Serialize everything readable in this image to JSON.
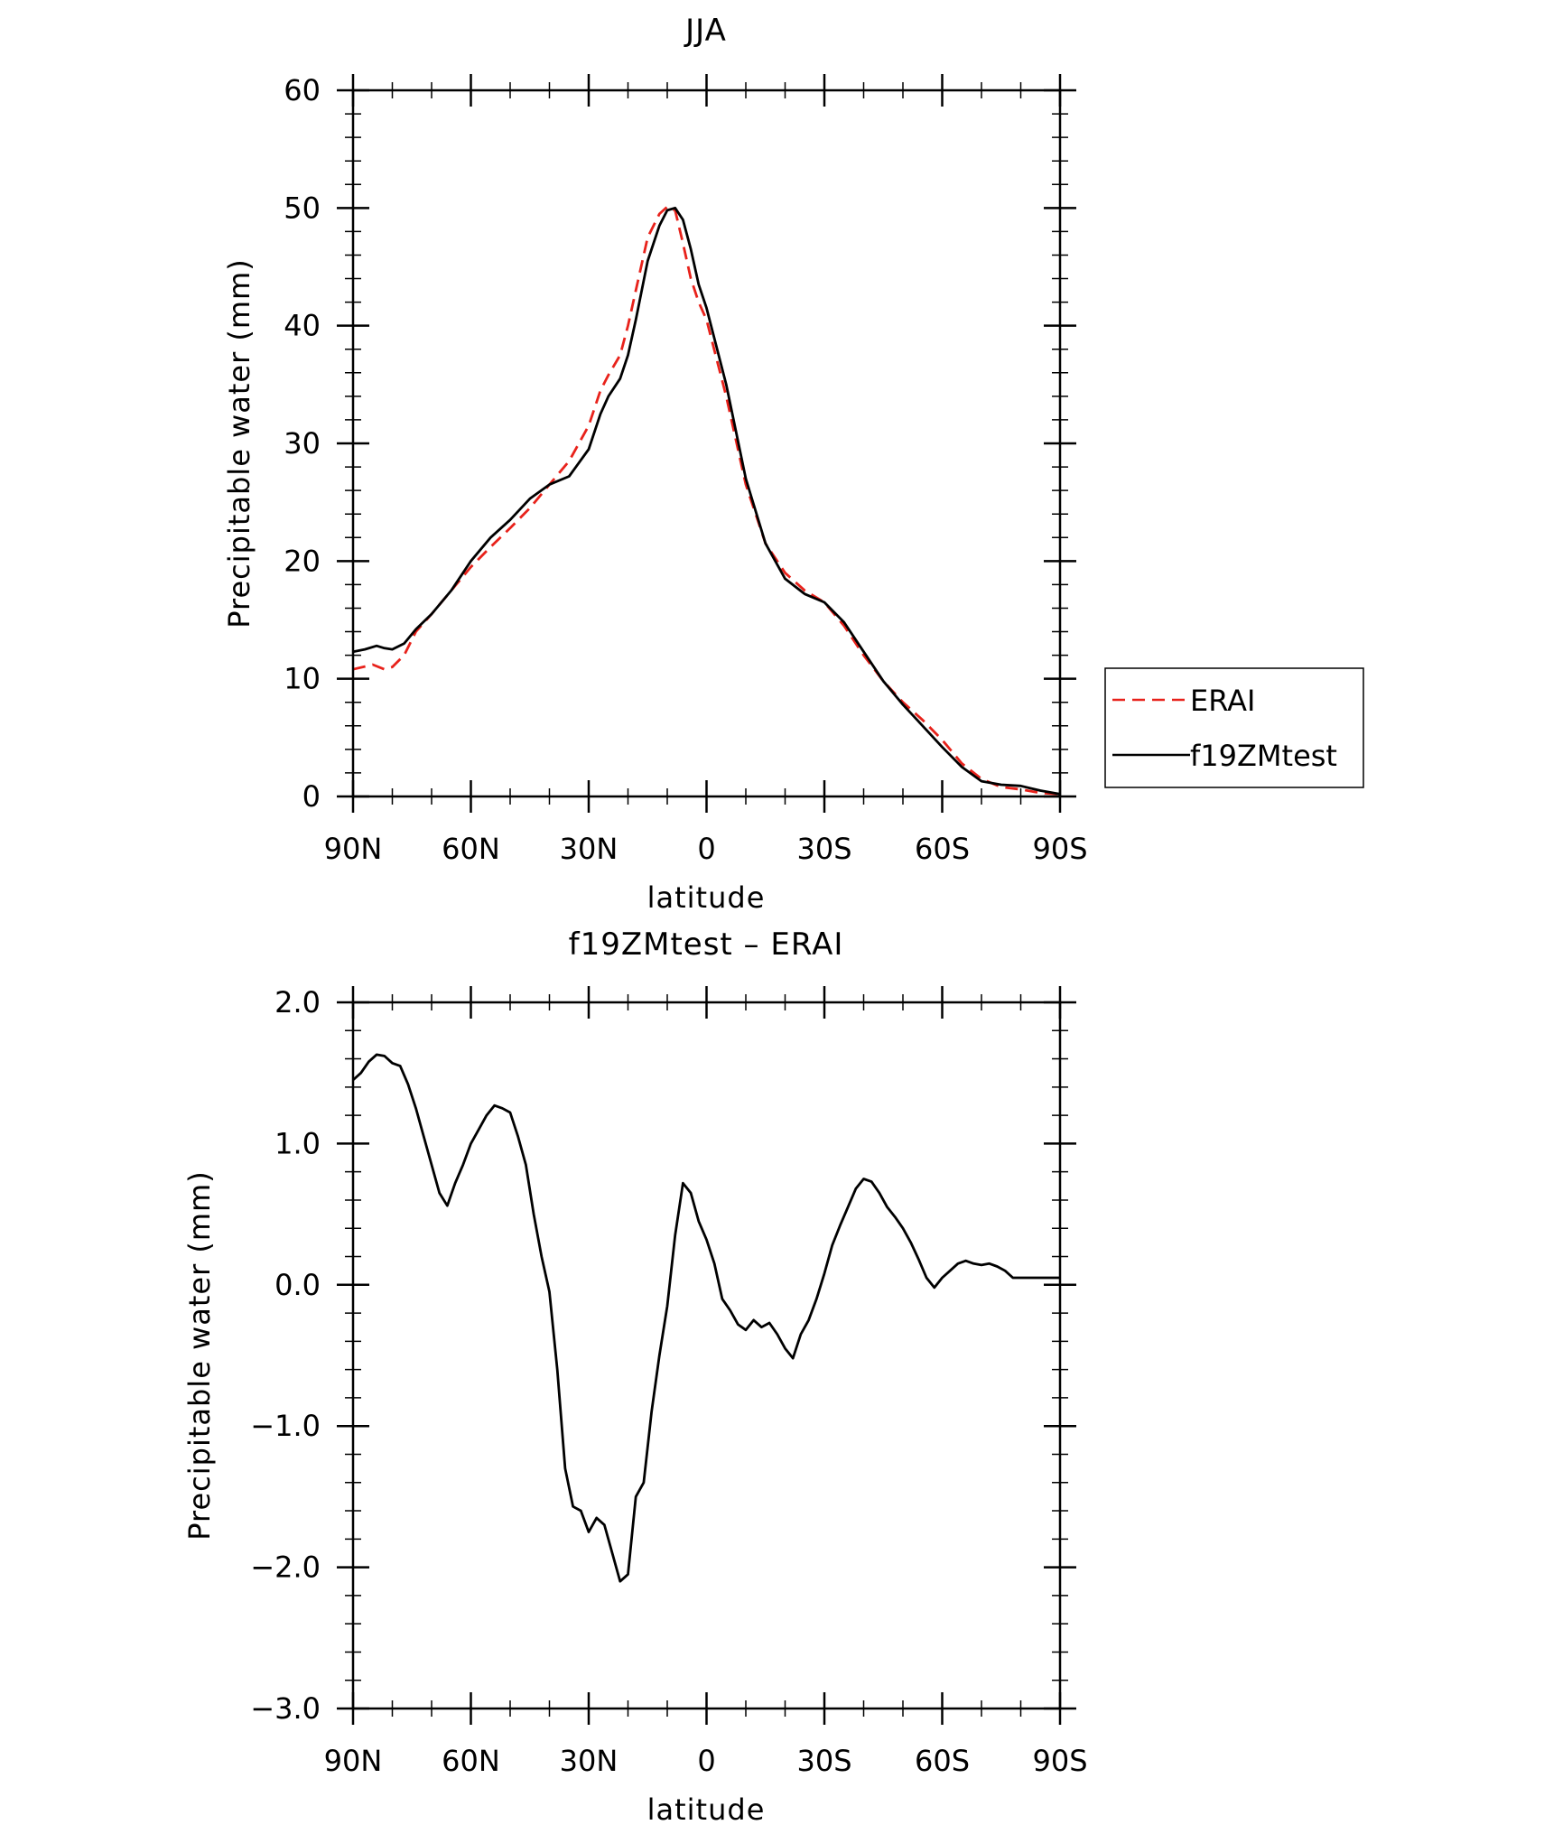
{
  "colors": {
    "erai": "#e8221b",
    "model": "#000000",
    "axes": "#000000",
    "background": "#ffffff"
  },
  "chart_data": [
    {
      "type": "line",
      "title": "JJA",
      "xlabel": "latitude",
      "ylabel": "Precipitable water (mm)",
      "xlim": [
        90,
        -90
      ],
      "ylim": [
        0,
        60
      ],
      "x_ticks": [
        90,
        60,
        30,
        0,
        -30,
        -60,
        -90
      ],
      "x_tick_labels": [
        "90N",
        "60N",
        "30N",
        "0",
        "30S",
        "60S",
        "90S"
      ],
      "y_ticks": [
        0,
        10,
        20,
        30,
        40,
        50,
        60
      ],
      "y_tick_labels": [
        "0",
        "10",
        "20",
        "30",
        "40",
        "50",
        "60"
      ],
      "grid": false,
      "legend": {
        "placement": "right",
        "entries": [
          "ERAI",
          "f19ZMtest"
        ]
      },
      "series": [
        {
          "name": "ERAI",
          "style": "dashed",
          "color": "#e8221b",
          "x": [
            90,
            85,
            82,
            80,
            77,
            74,
            70,
            65,
            60,
            55,
            50,
            45,
            40,
            35,
            30,
            27,
            25,
            22,
            20,
            18,
            15,
            12,
            10,
            8,
            6,
            4,
            2,
            0,
            -5,
            -10,
            -15,
            -20,
            -25,
            -30,
            -35,
            -40,
            -45,
            -50,
            -55,
            -60,
            -65,
            -70,
            -75,
            -80,
            -85,
            -90
          ],
          "y": [
            10.8,
            11.2,
            10.8,
            11.0,
            12.0,
            14.0,
            15.5,
            17.5,
            19.5,
            21.2,
            22.8,
            24.5,
            26.5,
            28.5,
            31.5,
            34.5,
            35.8,
            37.5,
            40.0,
            43.0,
            47.5,
            49.5,
            50.1,
            49.8,
            47.0,
            44.0,
            42.0,
            40.5,
            34.0,
            26.5,
            21.5,
            19.0,
            17.5,
            16.5,
            14.5,
            12.0,
            9.8,
            8.0,
            6.5,
            4.8,
            2.8,
            1.5,
            0.8,
            0.6,
            0.3,
            0.2
          ]
        },
        {
          "name": "f19ZMtest",
          "style": "solid",
          "color": "#000000",
          "x": [
            90,
            87,
            84,
            82,
            80,
            77,
            74,
            70,
            65,
            60,
            55,
            50,
            45,
            40,
            35,
            30,
            27,
            25,
            22,
            20,
            18,
            15,
            12,
            10,
            8,
            6,
            4,
            2,
            0,
            -5,
            -10,
            -15,
            -20,
            -25,
            -30,
            -35,
            -40,
            -45,
            -50,
            -55,
            -60,
            -65,
            -70,
            -75,
            -80,
            -85,
            -90
          ],
          "y": [
            12.3,
            12.5,
            12.8,
            12.6,
            12.5,
            13.0,
            14.2,
            15.5,
            17.5,
            20.0,
            22.0,
            23.5,
            25.3,
            26.5,
            27.2,
            29.5,
            32.5,
            34.0,
            35.5,
            37.5,
            40.5,
            45.5,
            48.5,
            49.8,
            50.0,
            49.0,
            46.5,
            43.5,
            41.5,
            35.0,
            27.0,
            21.5,
            18.5,
            17.2,
            16.5,
            14.8,
            12.3,
            9.8,
            7.8,
            6.0,
            4.2,
            2.5,
            1.3,
            1.0,
            0.9,
            0.5,
            0.2
          ]
        }
      ]
    },
    {
      "type": "line",
      "title": "f19ZMtest – ERAI",
      "xlabel": "latitude",
      "ylabel": "Precipitable water (mm)",
      "xlim": [
        90,
        -90
      ],
      "ylim": [
        -3.0,
        2.0
      ],
      "x_ticks": [
        90,
        60,
        30,
        0,
        -30,
        -60,
        -90
      ],
      "x_tick_labels": [
        "90N",
        "60N",
        "30N",
        "0",
        "30S",
        "60S",
        "90S"
      ],
      "y_ticks": [
        2.0,
        1.0,
        0.0,
        -1.0,
        -2.0,
        -3.0
      ],
      "y_tick_labels": [
        "2.0",
        "1.0",
        "0.0",
        "−1.0",
        "−2.0",
        "−3.0"
      ],
      "grid": false,
      "series": [
        {
          "style": "solid",
          "color": "#000000",
          "x": [
            90,
            88,
            86,
            84,
            82,
            80,
            78,
            76,
            74,
            72,
            70,
            68,
            66,
            64,
            62,
            60,
            58,
            56,
            54,
            52,
            50,
            48,
            46,
            44,
            42,
            40,
            38,
            36,
            34,
            32,
            30,
            28,
            26,
            24,
            22,
            20,
            18,
            16,
            14,
            12,
            10,
            8,
            6,
            4,
            2,
            0,
            -2,
            -4,
            -6,
            -8,
            -10,
            -12,
            -14,
            -16,
            -18,
            -20,
            -22,
            -24,
            -26,
            -28,
            -30,
            -32,
            -34,
            -36,
            -38,
            -40,
            -42,
            -44,
            -46,
            -48,
            -50,
            -52,
            -54,
            -56,
            -58,
            -60,
            -62,
            -64,
            -66,
            -68,
            -70,
            -72,
            -74,
            -76,
            -78,
            -80,
            -82,
            -84,
            -86,
            -88,
            -90
          ],
          "y": [
            1.45,
            1.5,
            1.58,
            1.63,
            1.62,
            1.57,
            1.55,
            1.42,
            1.25,
            1.05,
            0.85,
            0.65,
            0.56,
            0.72,
            0.85,
            1.0,
            1.1,
            1.2,
            1.27,
            1.25,
            1.22,
            1.05,
            0.85,
            0.5,
            0.2,
            -0.05,
            -0.6,
            -1.3,
            -1.57,
            -1.6,
            -1.75,
            -1.65,
            -1.7,
            -1.9,
            -2.1,
            -2.05,
            -1.5,
            -1.4,
            -0.9,
            -0.5,
            -0.15,
            0.35,
            0.72,
            0.65,
            0.45,
            0.32,
            0.15,
            -0.1,
            -0.18,
            -0.28,
            -0.32,
            -0.25,
            -0.3,
            -0.27,
            -0.35,
            -0.45,
            -0.52,
            -0.35,
            -0.25,
            -0.1,
            0.08,
            0.28,
            0.42,
            0.55,
            0.68,
            0.75,
            0.73,
            0.65,
            0.55,
            0.48,
            0.4,
            0.3,
            0.18,
            0.05,
            -0.02,
            0.05,
            0.1,
            0.15,
            0.17,
            0.15,
            0.14,
            0.15,
            0.13,
            0.1,
            0.05,
            0.05,
            0.05,
            0.05,
            0.05,
            0.05,
            0.05
          ]
        }
      ]
    }
  ]
}
